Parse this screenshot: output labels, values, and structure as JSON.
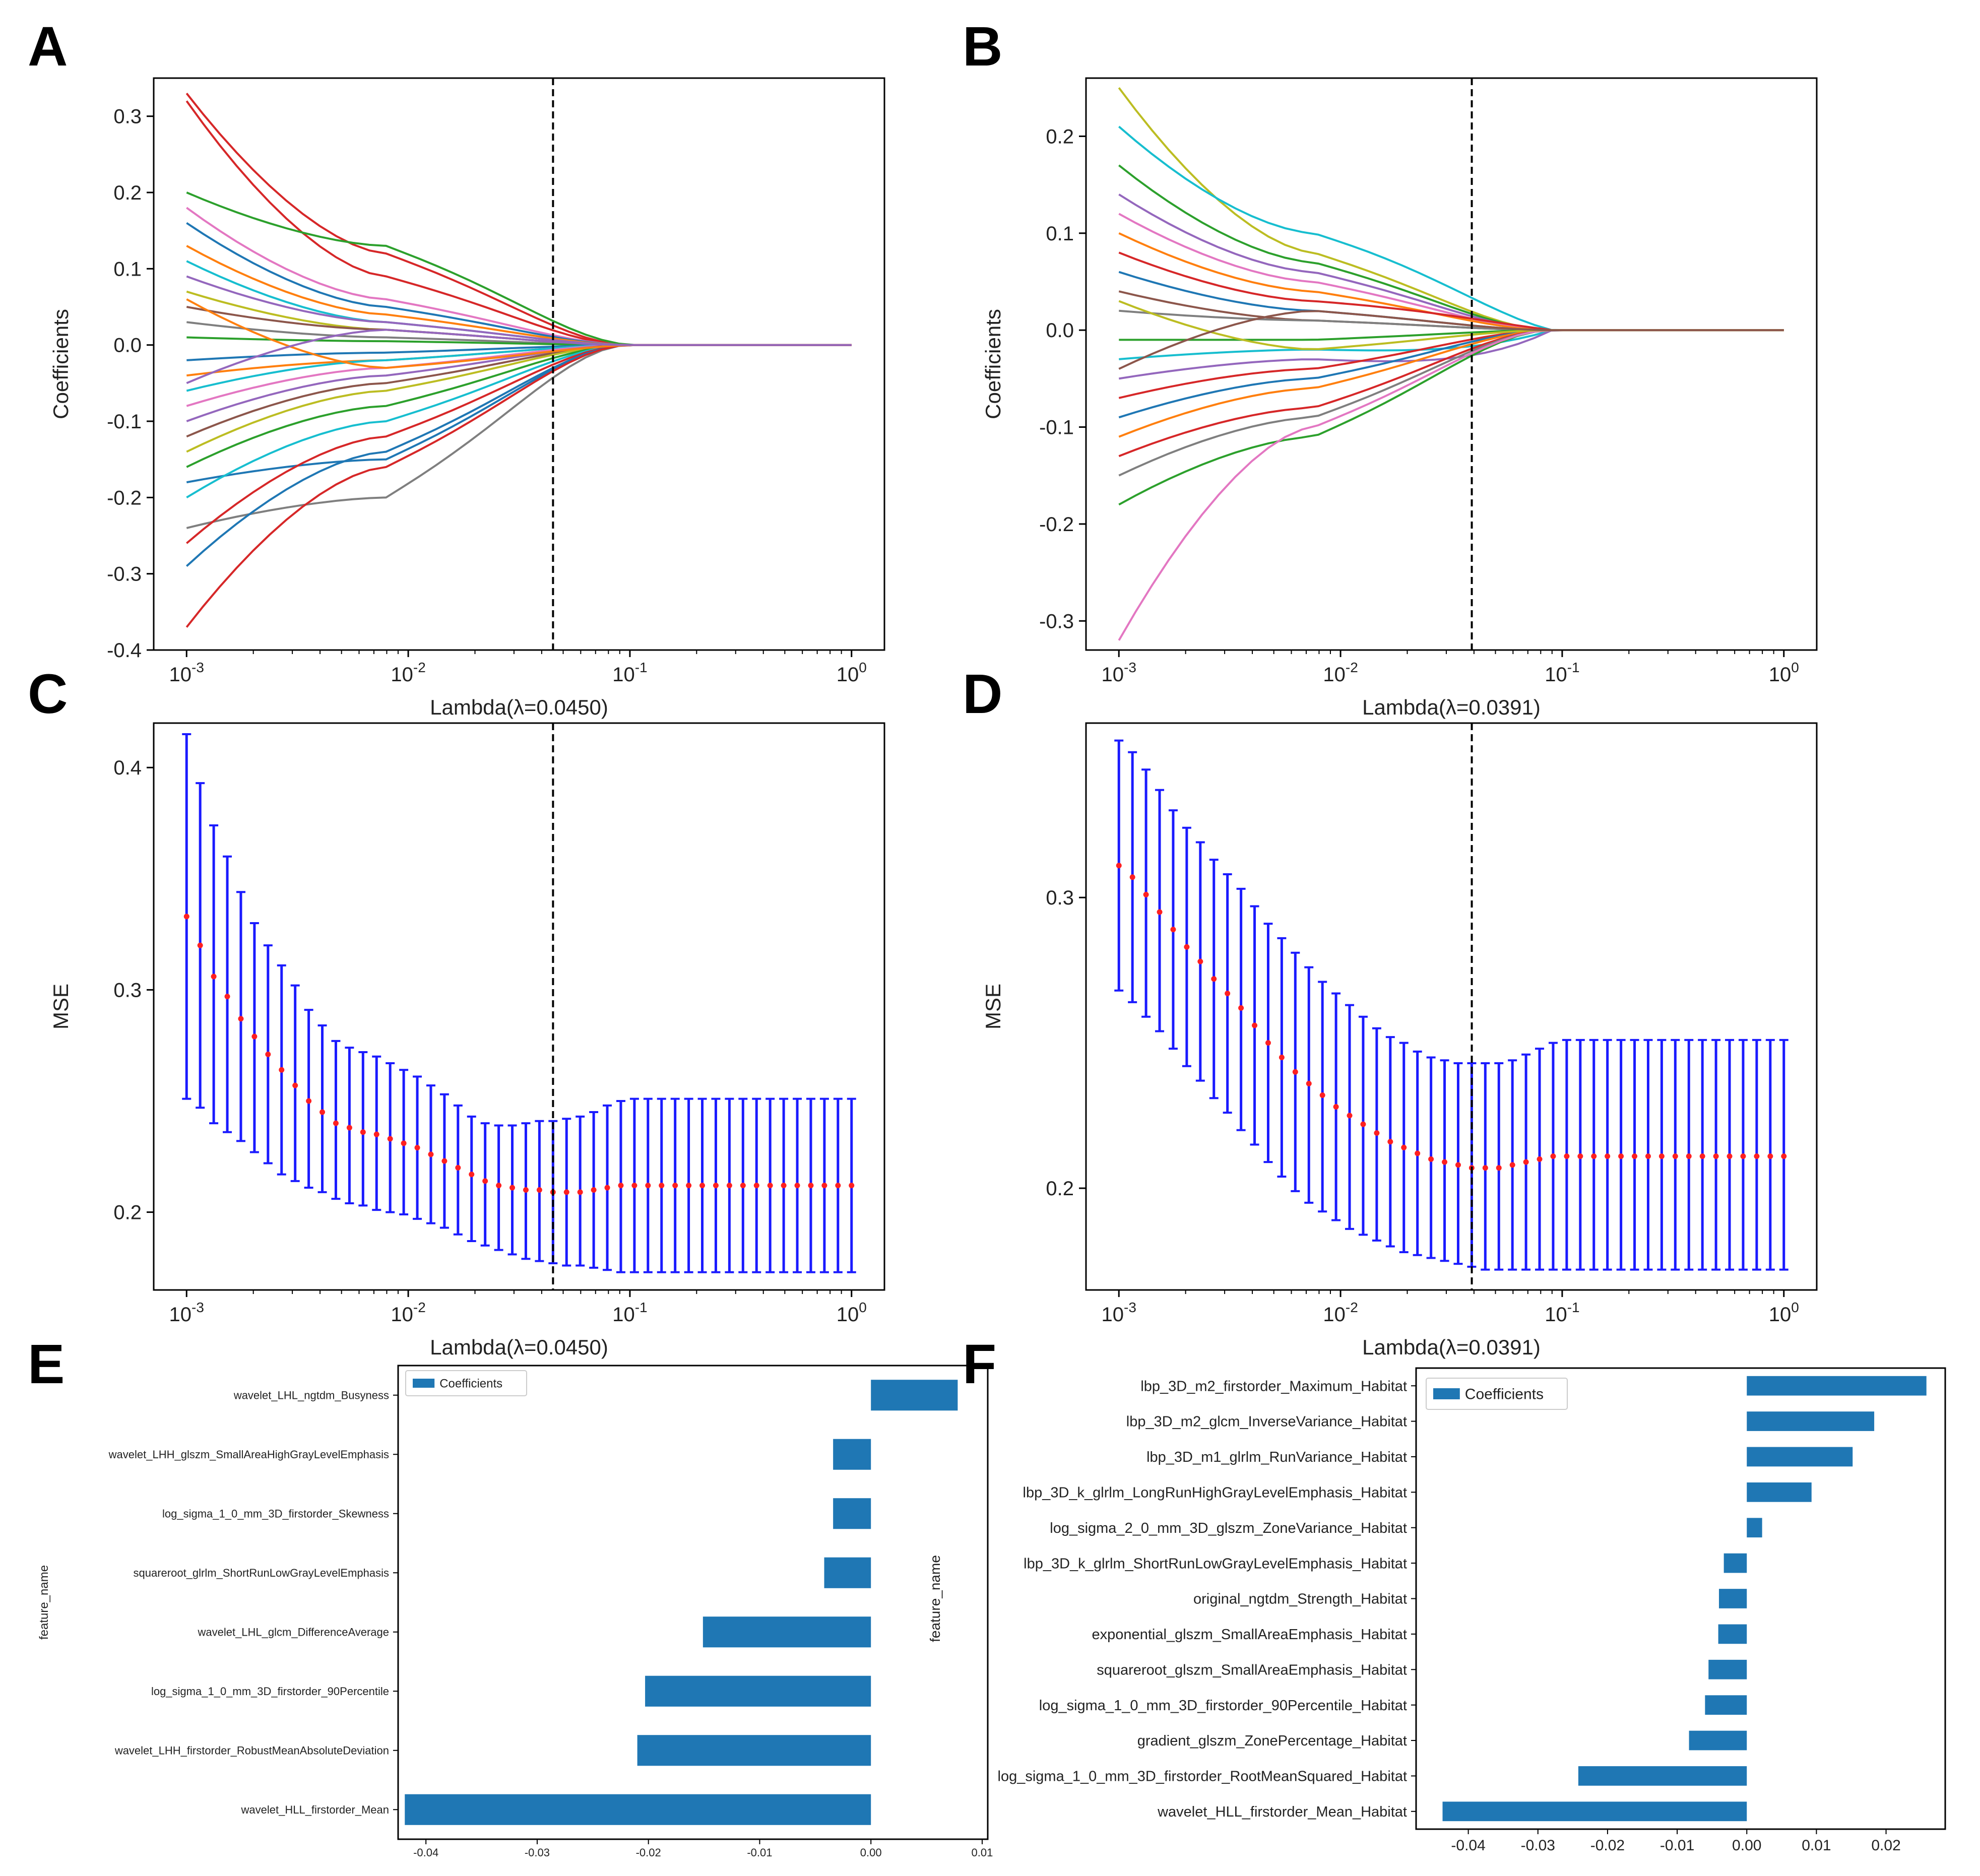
{
  "panels": {
    "A": "A",
    "B": "B",
    "C": "C",
    "D": "D",
    "E": "E",
    "F": "F"
  },
  "colors": {
    "bar": "#1f77b4",
    "errorbar": "#1a1aff",
    "mse_point": "#ff2020",
    "cutoff_line": "#000000",
    "frame": "#000000",
    "palette": [
      "#1f77b4",
      "#ff7f0e",
      "#2ca02c",
      "#d62728",
      "#9467bd",
      "#8c564b",
      "#e377c2",
      "#7f7f7f",
      "#bcbd22",
      "#17becf"
    ]
  },
  "chart_data": [
    {
      "panel": "A",
      "type": "line",
      "xscale": "log",
      "xlim": [
        0.001,
        1
      ],
      "ylim": [
        -0.4,
        0.35
      ],
      "xticks": [
        "10^-3",
        "10^-2",
        "10^-1",
        "10^0"
      ],
      "yticks": [
        -0.4,
        -0.3,
        -0.2,
        -0.1,
        0.0,
        0.1,
        0.2,
        0.3
      ],
      "ytick_labels": [
        "-0.4",
        "-0.3",
        "-0.2",
        "-0.1",
        "0.0",
        "0.1",
        "0.2",
        "0.3"
      ],
      "xlabel": "Lambda(λ=0.0450)",
      "ylabel": "Coefficients",
      "cutoff": 0.045,
      "zero_lambda": 0.1,
      "series": [
        {
          "name": "f1",
          "start": 0.33,
          "mid": 0.12,
          "color_index": 3
        },
        {
          "name": "f2",
          "start": 0.32,
          "mid": 0.09,
          "color_index": 3
        },
        {
          "name": "f3",
          "start": 0.2,
          "mid": 0.13,
          "color_index": 2,
          "persist": 0.008
        },
        {
          "name": "f4",
          "start": 0.18,
          "mid": 0.06,
          "color_index": 6
        },
        {
          "name": "f5",
          "start": 0.16,
          "mid": 0.05,
          "color_index": 0
        },
        {
          "name": "f6",
          "start": 0.13,
          "mid": 0.04,
          "color_index": 1
        },
        {
          "name": "f7",
          "start": 0.11,
          "mid": 0.03,
          "color_index": 9
        },
        {
          "name": "f8",
          "start": 0.09,
          "mid": 0.03,
          "color_index": 4
        },
        {
          "name": "f9",
          "start": 0.07,
          "mid": 0.02,
          "color_index": 8
        },
        {
          "name": "f10",
          "start": 0.05,
          "mid": 0.02,
          "color_index": 5
        },
        {
          "name": "f11",
          "start": 0.03,
          "mid": 0.01,
          "color_index": 7
        },
        {
          "name": "f12",
          "start": 0.01,
          "mid": 0.005,
          "color_index": 2
        },
        {
          "name": "f13",
          "start": -0.02,
          "mid": -0.01,
          "color_index": 0
        },
        {
          "name": "f14",
          "start": -0.04,
          "mid": -0.02,
          "color_index": 1
        },
        {
          "name": "f15",
          "start": -0.06,
          "mid": -0.02,
          "color_index": 9
        },
        {
          "name": "f16",
          "start": -0.08,
          "mid": -0.03,
          "color_index": 6
        },
        {
          "name": "f17",
          "start": -0.1,
          "mid": -0.04,
          "color_index": 4
        },
        {
          "name": "f18",
          "start": -0.12,
          "mid": -0.05,
          "color_index": 5
        },
        {
          "name": "f19",
          "start": -0.14,
          "mid": -0.06,
          "color_index": 8
        },
        {
          "name": "f20",
          "start": -0.16,
          "mid": -0.08,
          "color_index": 2
        },
        {
          "name": "f21",
          "start": -0.18,
          "mid": -0.15,
          "color_index": 0
        },
        {
          "name": "f22",
          "start": -0.2,
          "mid": -0.1,
          "color_index": 9
        },
        {
          "name": "f23",
          "start": -0.24,
          "mid": -0.2,
          "color_index": 7
        },
        {
          "name": "f24",
          "start": -0.26,
          "mid": -0.12,
          "color_index": 3
        },
        {
          "name": "f25",
          "start": -0.29,
          "mid": -0.14,
          "color_index": 0
        },
        {
          "name": "f26",
          "start": -0.37,
          "mid": -0.16,
          "color_index": 3
        },
        {
          "name": "f27",
          "start": 0.06,
          "mid": -0.03,
          "color_index": 1,
          "persist": -0.004
        },
        {
          "name": "f28",
          "start": -0.05,
          "mid": 0.02,
          "color_index": 4
        }
      ]
    },
    {
      "panel": "B",
      "type": "line",
      "xscale": "log",
      "xlim": [
        0.001,
        1
      ],
      "ylim": [
        -0.33,
        0.26
      ],
      "xticks": [
        "10^-3",
        "10^-2",
        "10^-1",
        "10^0"
      ],
      "yticks": [
        -0.3,
        -0.2,
        -0.1,
        0.0,
        0.1,
        0.2
      ],
      "ytick_labels": [
        "-0.3",
        "-0.2",
        "-0.1",
        "0.0",
        "0.1",
        "0.2"
      ],
      "xlabel": "Lambda(λ=0.0391)",
      "ylabel": "Coefficients",
      "cutoff": 0.0391,
      "zero_lambda": 0.09,
      "series": [
        {
          "name": "g1",
          "start": 0.25,
          "mid": 0.08,
          "color_index": 8
        },
        {
          "name": "g2",
          "start": 0.21,
          "mid": 0.1,
          "color_index": 9,
          "persist": 0.02
        },
        {
          "name": "g3",
          "start": 0.17,
          "mid": 0.07,
          "color_index": 2
        },
        {
          "name": "g4",
          "start": 0.14,
          "mid": 0.06,
          "color_index": 4
        },
        {
          "name": "g5",
          "start": 0.12,
          "mid": 0.05,
          "color_index": 6
        },
        {
          "name": "g6",
          "start": 0.1,
          "mid": 0.04,
          "color_index": 1
        },
        {
          "name": "g7",
          "start": 0.08,
          "mid": 0.03,
          "color_index": 3,
          "persist": 0.01
        },
        {
          "name": "g8",
          "start": 0.06,
          "mid": 0.02,
          "color_index": 0
        },
        {
          "name": "g9",
          "start": 0.04,
          "mid": 0.01,
          "color_index": 5
        },
        {
          "name": "g10",
          "start": 0.02,
          "mid": 0.01,
          "color_index": 7
        },
        {
          "name": "g11",
          "start": -0.01,
          "mid": -0.01,
          "color_index": 2
        },
        {
          "name": "g12",
          "start": -0.03,
          "mid": -0.02,
          "color_index": 9,
          "persist": -0.025
        },
        {
          "name": "g13",
          "start": -0.05,
          "mid": -0.03,
          "color_index": 4,
          "persist": -0.04
        },
        {
          "name": "g14",
          "start": -0.07,
          "mid": -0.04,
          "color_index": 3
        },
        {
          "name": "g15",
          "start": -0.09,
          "mid": -0.05,
          "color_index": 0
        },
        {
          "name": "g16",
          "start": -0.11,
          "mid": -0.06,
          "color_index": 1
        },
        {
          "name": "g17",
          "start": -0.13,
          "mid": -0.08,
          "color_index": 3
        },
        {
          "name": "g18",
          "start": -0.15,
          "mid": -0.09,
          "color_index": 7
        },
        {
          "name": "g19",
          "start": -0.18,
          "mid": -0.11,
          "color_index": 2
        },
        {
          "name": "g20",
          "start": -0.32,
          "mid": -0.1,
          "color_index": 6
        },
        {
          "name": "g21",
          "start": 0.03,
          "mid": -0.02,
          "color_index": 8
        },
        {
          "name": "g22",
          "start": -0.04,
          "mid": 0.02,
          "color_index": 5
        }
      ]
    },
    {
      "panel": "C",
      "type": "scatter",
      "xscale": "log",
      "xlim": [
        0.001,
        1
      ],
      "ylim": [
        0.165,
        0.42
      ],
      "xticks": [
        "10^-3",
        "10^-2",
        "10^-1",
        "10^0"
      ],
      "yticks": [
        0.2,
        0.3,
        0.4
      ],
      "ytick_labels": [
        "0.2",
        "0.3",
        "0.4"
      ],
      "xlabel": "Lambda(λ=0.0450)",
      "ylabel": "MSE",
      "cutoff": 0.045,
      "n_points": 50,
      "mean": [
        0.333,
        0.32,
        0.306,
        0.297,
        0.287,
        0.279,
        0.271,
        0.264,
        0.257,
        0.25,
        0.245,
        0.24,
        0.238,
        0.236,
        0.235,
        0.233,
        0.231,
        0.229,
        0.226,
        0.223,
        0.22,
        0.217,
        0.214,
        0.212,
        0.211,
        0.21,
        0.21,
        0.209,
        0.209,
        0.209,
        0.21,
        0.211,
        0.212,
        0.212,
        0.212,
        0.212,
        0.212,
        0.212,
        0.212,
        0.212,
        0.212,
        0.212,
        0.212,
        0.212,
        0.212,
        0.212,
        0.212,
        0.212,
        0.212,
        0.212
      ],
      "err_low": [
        0.251,
        0.247,
        0.24,
        0.236,
        0.232,
        0.227,
        0.222,
        0.217,
        0.214,
        0.211,
        0.209,
        0.206,
        0.204,
        0.203,
        0.201,
        0.2,
        0.199,
        0.197,
        0.195,
        0.193,
        0.19,
        0.187,
        0.185,
        0.183,
        0.181,
        0.179,
        0.178,
        0.177,
        0.176,
        0.176,
        0.175,
        0.174,
        0.173,
        0.173,
        0.173,
        0.173,
        0.173,
        0.173,
        0.173,
        0.173,
        0.173,
        0.173,
        0.173,
        0.173,
        0.173,
        0.173,
        0.173,
        0.173,
        0.173,
        0.173
      ],
      "err_high": [
        0.415,
        0.393,
        0.374,
        0.36,
        0.344,
        0.33,
        0.32,
        0.311,
        0.302,
        0.291,
        0.284,
        0.277,
        0.274,
        0.272,
        0.27,
        0.267,
        0.264,
        0.261,
        0.257,
        0.253,
        0.248,
        0.243,
        0.24,
        0.239,
        0.239,
        0.24,
        0.241,
        0.241,
        0.242,
        0.243,
        0.245,
        0.248,
        0.25,
        0.251,
        0.251,
        0.251,
        0.251,
        0.251,
        0.251,
        0.251,
        0.251,
        0.251,
        0.251,
        0.251,
        0.251,
        0.251,
        0.251,
        0.251,
        0.251,
        0.251
      ]
    },
    {
      "panel": "D",
      "type": "scatter",
      "xscale": "log",
      "xlim": [
        0.001,
        1
      ],
      "ylim": [
        0.165,
        0.36
      ],
      "xticks": [
        "10^-3",
        "10^-2",
        "10^-1",
        "10^0"
      ],
      "yticks": [
        0.2,
        0.3
      ],
      "ytick_labels": [
        "0.2",
        "0.3"
      ],
      "xlabel": "Lambda(λ=0.0391)",
      "ylabel": "MSE",
      "cutoff": 0.0391,
      "n_points": 50,
      "mean": [
        0.311,
        0.307,
        0.301,
        0.295,
        0.289,
        0.283,
        0.278,
        0.272,
        0.267,
        0.262,
        0.256,
        0.25,
        0.245,
        0.24,
        0.236,
        0.232,
        0.228,
        0.225,
        0.222,
        0.219,
        0.216,
        0.214,
        0.212,
        0.21,
        0.209,
        0.208,
        0.207,
        0.207,
        0.207,
        0.208,
        0.209,
        0.21,
        0.211,
        0.211,
        0.211,
        0.211,
        0.211,
        0.211,
        0.211,
        0.211,
        0.211,
        0.211,
        0.211,
        0.211,
        0.211,
        0.211,
        0.211,
        0.211,
        0.211,
        0.211
      ],
      "err_low": [
        0.268,
        0.264,
        0.259,
        0.254,
        0.248,
        0.242,
        0.237,
        0.231,
        0.226,
        0.22,
        0.215,
        0.209,
        0.204,
        0.199,
        0.195,
        0.192,
        0.189,
        0.186,
        0.184,
        0.182,
        0.18,
        0.178,
        0.177,
        0.176,
        0.175,
        0.174,
        0.173,
        0.172,
        0.172,
        0.172,
        0.172,
        0.172,
        0.172,
        0.172,
        0.172,
        0.172,
        0.172,
        0.172,
        0.172,
        0.172,
        0.172,
        0.172,
        0.172,
        0.172,
        0.172,
        0.172,
        0.172,
        0.172,
        0.172,
        0.172
      ],
      "err_high": [
        0.354,
        0.35,
        0.344,
        0.337,
        0.33,
        0.324,
        0.319,
        0.313,
        0.308,
        0.303,
        0.297,
        0.291,
        0.286,
        0.281,
        0.276,
        0.271,
        0.267,
        0.263,
        0.259,
        0.255,
        0.252,
        0.25,
        0.247,
        0.245,
        0.244,
        0.243,
        0.243,
        0.243,
        0.243,
        0.244,
        0.246,
        0.248,
        0.25,
        0.251,
        0.251,
        0.251,
        0.251,
        0.251,
        0.251,
        0.251,
        0.251,
        0.251,
        0.251,
        0.251,
        0.251,
        0.251,
        0.251,
        0.251,
        0.251,
        0.251
      ]
    },
    {
      "panel": "E",
      "type": "bar",
      "orientation": "horizontal",
      "xlim": [
        -0.0425,
        0.0105
      ],
      "xticks": [
        -0.04,
        -0.03,
        -0.02,
        -0.01,
        0.0,
        0.01
      ],
      "xtick_labels": [
        "-0.04",
        "-0.03",
        "-0.02",
        "-0.01",
        "0.00",
        "0.01"
      ],
      "ylabel": "feature_name",
      "legend": "Coefficients",
      "categories": [
        "wavelet_LHL_ngtdm_Busyness",
        "wavelet_LHH_glszm_SmallAreaHighGrayLevelEmphasis",
        "log_sigma_1_0_mm_3D_firstorder_Skewness",
        "squareroot_glrlm_ShortRunLowGrayLevelEmphasis",
        "wavelet_LHL_glcm_DifferenceAverage",
        "log_sigma_1_0_mm_3D_firstorder_90Percentile",
        "wavelet_LHH_firstorder_RobustMeanAbsoluteDeviation",
        "wavelet_HLL_firstorder_Mean"
      ],
      "values": [
        0.0078,
        -0.0034,
        -0.0034,
        -0.0042,
        -0.0151,
        -0.0203,
        -0.021,
        -0.0419
      ]
    },
    {
      "panel": "F",
      "type": "bar",
      "orientation": "horizontal",
      "xlim": [
        -0.0475,
        0.0285
      ],
      "xticks": [
        -0.04,
        -0.03,
        -0.02,
        -0.01,
        0.0,
        0.01,
        0.02
      ],
      "xtick_labels": [
        "-0.04",
        "-0.03",
        "-0.02",
        "-0.01",
        "0.00",
        "0.01",
        "0.02"
      ],
      "ylabel": "feature_name",
      "legend": "Coefficients",
      "categories": [
        "lbp_3D_m2_firstorder_Maximum_Habitat",
        "lbp_3D_m2_glcm_InverseVariance_Habitat",
        "lbp_3D_m1_glrlm_RunVariance_Habitat",
        "lbp_3D_k_glrlm_LongRunHighGrayLevelEmphasis_Habitat",
        "log_sigma_2_0_mm_3D_glszm_ZoneVariance_Habitat",
        "lbp_3D_k_glrlm_ShortRunLowGrayLevelEmphasis_Habitat",
        "original_ngtdm_Strength_Habitat",
        "exponential_glszm_SmallAreaEmphasis_Habitat",
        "squareroot_glszm_SmallAreaEmphasis_Habitat",
        "log_sigma_1_0_mm_3D_firstorder_90Percentile_Habitat",
        "gradient_glszm_ZonePercentage_Habitat",
        "log_sigma_1_0_mm_3D_firstorder_RootMeanSquared_Habitat",
        "wavelet_HLL_firstorder_Mean_Habitat"
      ],
      "values": [
        0.0258,
        0.0183,
        0.0152,
        0.0093,
        0.0022,
        -0.0033,
        -0.004,
        -0.0041,
        -0.0055,
        -0.006,
        -0.0083,
        -0.0242,
        -0.0437
      ]
    }
  ]
}
